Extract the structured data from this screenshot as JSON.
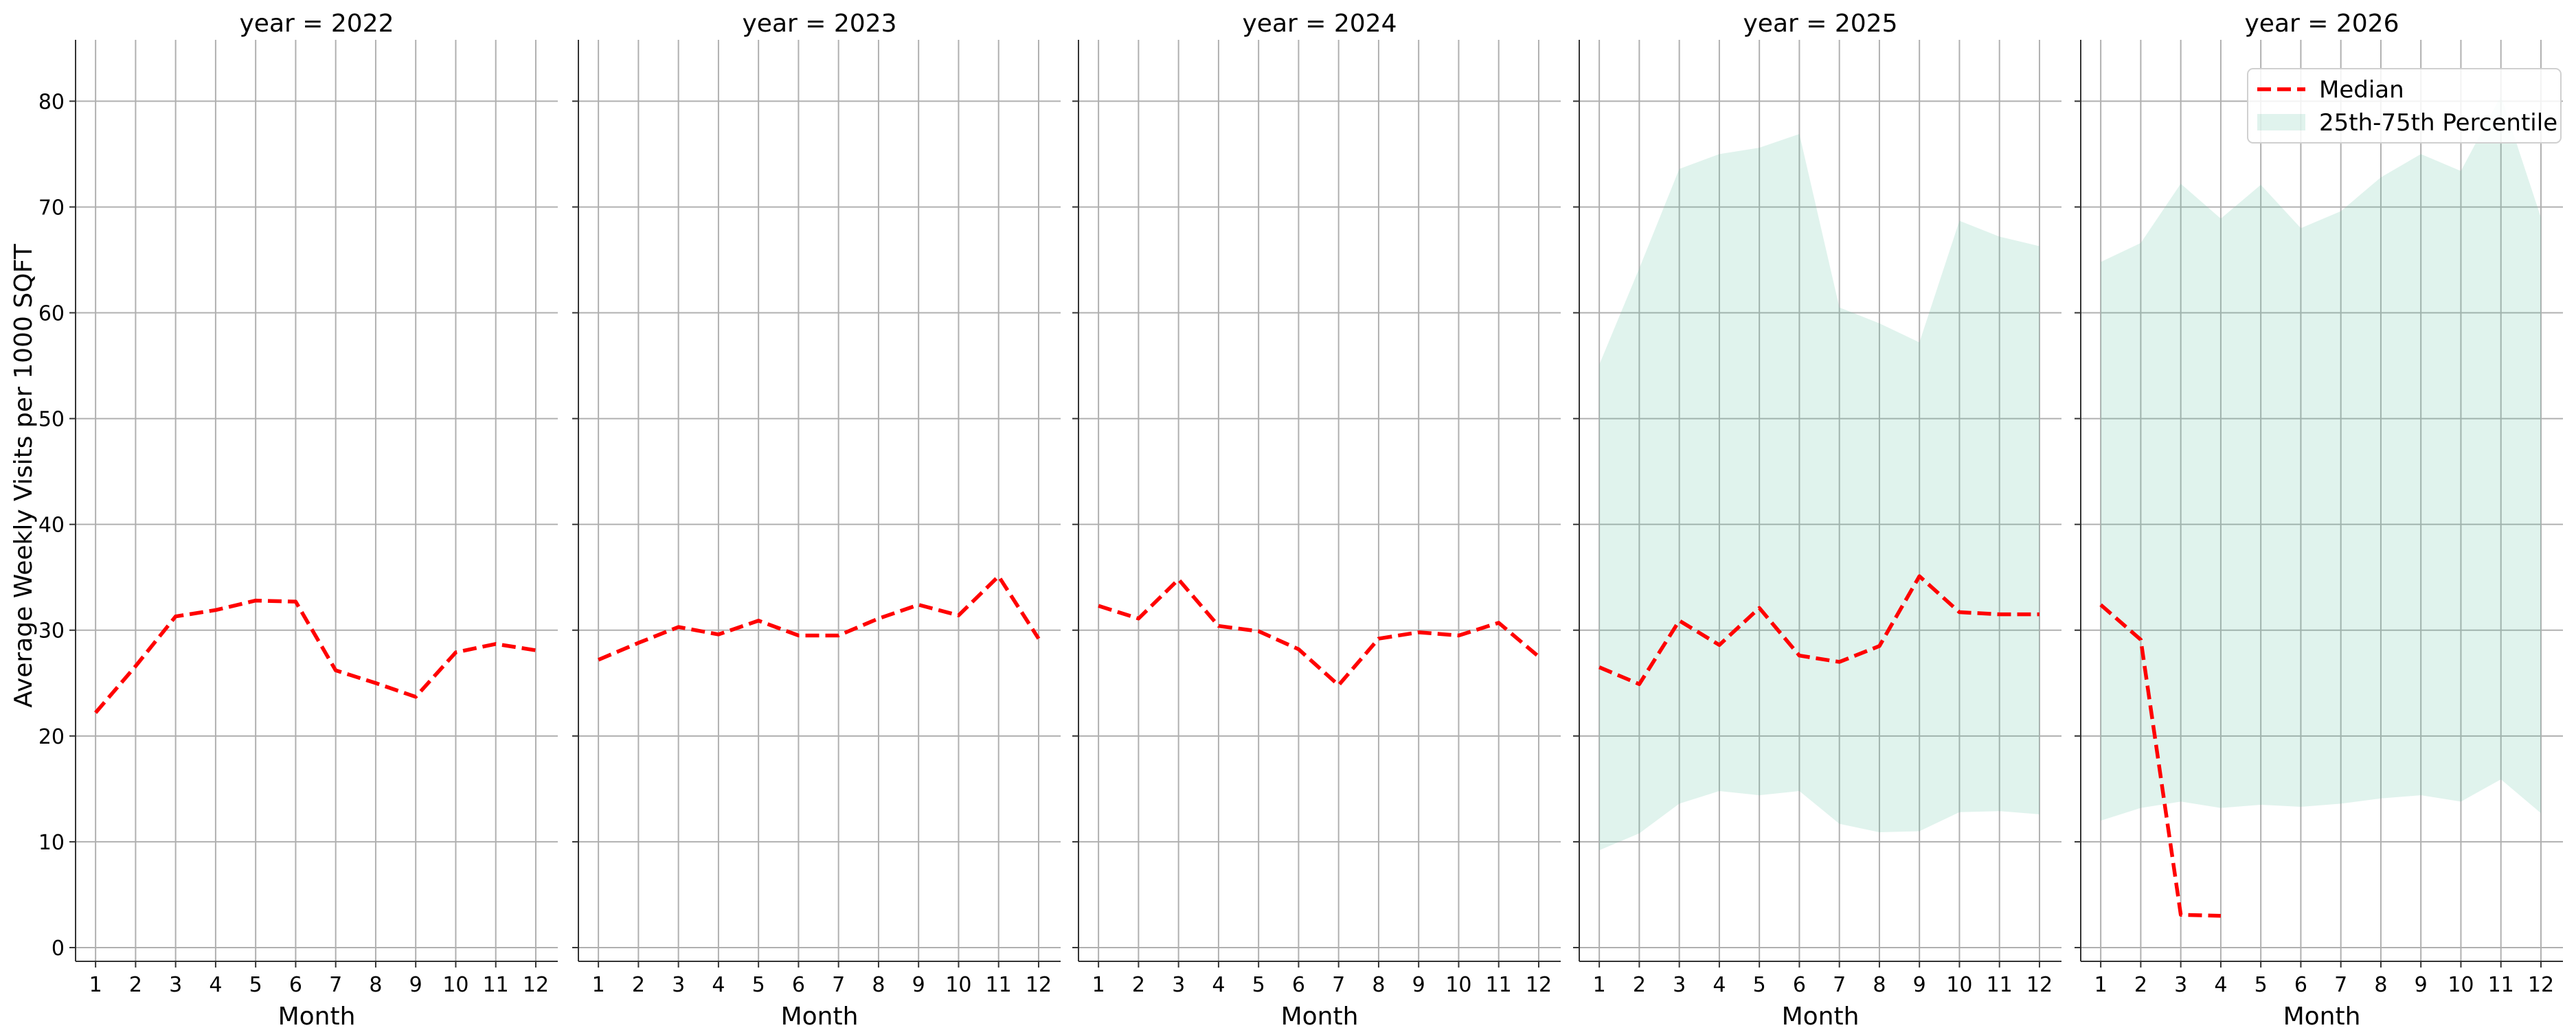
{
  "chart_data": {
    "type": "line",
    "ylabel": "Average Weekly Visits per 1000 SQFT",
    "xlabel": "Month",
    "ylim": [
      -1.3,
      85.8
    ],
    "xlim": [
      0.5,
      12.55
    ],
    "x_ticks": [
      1,
      2,
      3,
      4,
      5,
      6,
      7,
      8,
      9,
      10,
      11,
      12
    ],
    "y_ticks": [
      0,
      10,
      20,
      30,
      40,
      50,
      60,
      70,
      80
    ],
    "grid": true,
    "legend_position": "top-right",
    "legend": [
      {
        "label": "Median",
        "type": "line",
        "color": "#ff0000"
      },
      {
        "label": "25th-75th Percentile",
        "type": "band",
        "color": "#dff2ec"
      }
    ],
    "facets": [
      {
        "title": "year = 2022",
        "median": {
          "x": [
            1,
            2,
            3,
            4,
            5,
            6,
            7,
            8,
            9,
            10,
            11,
            12
          ],
          "y": [
            22.2,
            26.6,
            31.3,
            31.9,
            32.8,
            32.7,
            26.2,
            25.0,
            23.7,
            27.9,
            28.7,
            28.1
          ]
        },
        "band": null
      },
      {
        "title": "year = 2023",
        "median": {
          "x": [
            1,
            2,
            3,
            4,
            5,
            6,
            7,
            8,
            9,
            10,
            11,
            12
          ],
          "y": [
            27.2,
            28.8,
            30.3,
            29.6,
            30.9,
            29.5,
            29.5,
            31.1,
            32.4,
            31.4,
            35.1,
            29.2
          ]
        },
        "band": null
      },
      {
        "title": "year = 2024",
        "median": {
          "x": [
            1,
            2,
            3,
            4,
            5,
            6,
            7,
            8,
            9,
            10,
            11,
            12
          ],
          "y": [
            32.3,
            31.1,
            34.8,
            30.4,
            29.9,
            28.2,
            24.8,
            29.2,
            29.8,
            29.5,
            30.7,
            27.5
          ]
        },
        "band": null
      },
      {
        "title": "year = 2025",
        "median": {
          "x": [
            1,
            2,
            3,
            4,
            5,
            6,
            7,
            8,
            9,
            10,
            11,
            12
          ],
          "y": [
            26.5,
            24.9,
            30.9,
            28.6,
            32.1,
            27.6,
            27.0,
            28.5,
            35.1,
            31.7,
            31.5,
            31.5
          ]
        },
        "band": {
          "x": [
            1,
            2,
            3,
            4,
            5,
            6,
            7,
            8,
            9,
            10,
            11,
            12
          ],
          "lower": [
            9.2,
            10.8,
            13.6,
            14.8,
            14.4,
            14.8,
            11.7,
            10.9,
            11.0,
            12.8,
            12.9,
            12.6
          ],
          "upper": [
            55.1,
            64.2,
            73.6,
            75.0,
            75.6,
            76.9,
            60.5,
            59.0,
            57.2,
            68.7,
            67.2,
            66.3
          ]
        }
      },
      {
        "title": "year = 2026",
        "median": {
          "x": [
            1,
            2,
            3,
            4
          ],
          "y": [
            32.4,
            29.1,
            3.1,
            3.0
          ]
        },
        "band": {
          "x": [
            1,
            2,
            3,
            4,
            5,
            6,
            7,
            8,
            9,
            10,
            11,
            12
          ],
          "lower": [
            12.0,
            13.2,
            13.8,
            13.2,
            13.5,
            13.3,
            13.6,
            14.1,
            14.4,
            13.8,
            15.9,
            12.7
          ],
          "upper": [
            64.8,
            66.6,
            72.2,
            68.9,
            72.1,
            68.0,
            69.6,
            72.8,
            75.0,
            73.4,
            80.5,
            69.0
          ]
        }
      }
    ]
  }
}
